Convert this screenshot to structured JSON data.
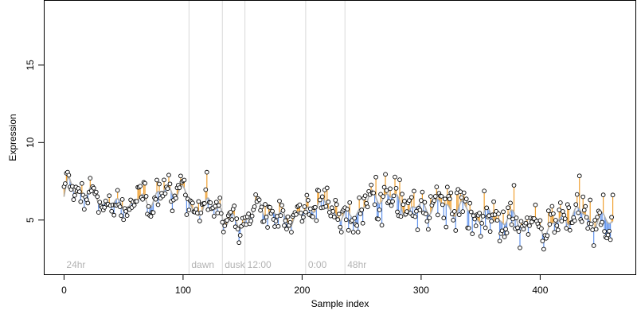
{
  "chart_data": {
    "type": "scatter",
    "title": "",
    "xlabel": "Sample index",
    "ylabel": "Expression",
    "xlim": [
      -17,
      480
    ],
    "ylim": [
      1.5,
      19.2
    ],
    "xticks": [
      0,
      100,
      200,
      300,
      400
    ],
    "yticks": [
      5,
      10,
      15
    ],
    "grid": false,
    "legend": "none",
    "phase_markers": [
      {
        "label": "24hr",
        "x": 0
      },
      {
        "label": "dawn",
        "x": 105
      },
      {
        "label": "dusk",
        "x": 133
      },
      {
        "label": "12:00",
        "x": 152
      },
      {
        "label": "0:00",
        "x": 203
      },
      {
        "label": "48hr",
        "x": 236
      }
    ],
    "colors": {
      "points_fill": "#ffffff",
      "points_stroke": "#000000",
      "above_fit": "#f0a030",
      "below_fit": "#6495ed",
      "fit_line": "#b0b0b0",
      "phase_line": "#d9d9d9",
      "phase_text": "#b3b3b3"
    },
    "anchors": [
      [
        0,
        6.5
      ],
      [
        4,
        7.3
      ],
      [
        10,
        6.8
      ],
      [
        20,
        6.9
      ],
      [
        28,
        6.3
      ],
      [
        35,
        6.2
      ],
      [
        45,
        5.8
      ],
      [
        50,
        6.0
      ],
      [
        60,
        6.1
      ],
      [
        70,
        6.3
      ],
      [
        80,
        6.6
      ],
      [
        90,
        7.0
      ],
      [
        98,
        6.9
      ],
      [
        104,
        6.4
      ],
      [
        108,
        5.6
      ],
      [
        115,
        5.8
      ],
      [
        125,
        5.9
      ],
      [
        132,
        5.9
      ],
      [
        134,
        4.9
      ],
      [
        145,
        4.8
      ],
      [
        150,
        4.9
      ],
      [
        157,
        5.3
      ],
      [
        165,
        5.9
      ],
      [
        172,
        5.6
      ],
      [
        180,
        5.2
      ],
      [
        190,
        5.1
      ],
      [
        197,
        5.2
      ],
      [
        203,
        5.5
      ],
      [
        212,
        6.2
      ],
      [
        222,
        5.7
      ],
      [
        234,
        5.3
      ],
      [
        240,
        5.0
      ],
      [
        248,
        5.8
      ],
      [
        256,
        6.3
      ],
      [
        262,
        6.4
      ],
      [
        272,
        6.7
      ],
      [
        280,
        6.1
      ],
      [
        290,
        5.6
      ],
      [
        300,
        5.8
      ],
      [
        310,
        6.0
      ],
      [
        320,
        5.9
      ],
      [
        330,
        5.7
      ],
      [
        340,
        5.7
      ],
      [
        350,
        5.2
      ],
      [
        360,
        5.3
      ],
      [
        370,
        4.9
      ],
      [
        380,
        5.2
      ],
      [
        390,
        4.7
      ],
      [
        400,
        4.6
      ],
      [
        410,
        4.5
      ],
      [
        420,
        5.1
      ],
      [
        428,
        5.4
      ],
      [
        436,
        5.4
      ],
      [
        442,
        5.0
      ],
      [
        450,
        4.9
      ],
      [
        460,
        5.0
      ]
    ],
    "n_points": 462,
    "seed": 7
  }
}
